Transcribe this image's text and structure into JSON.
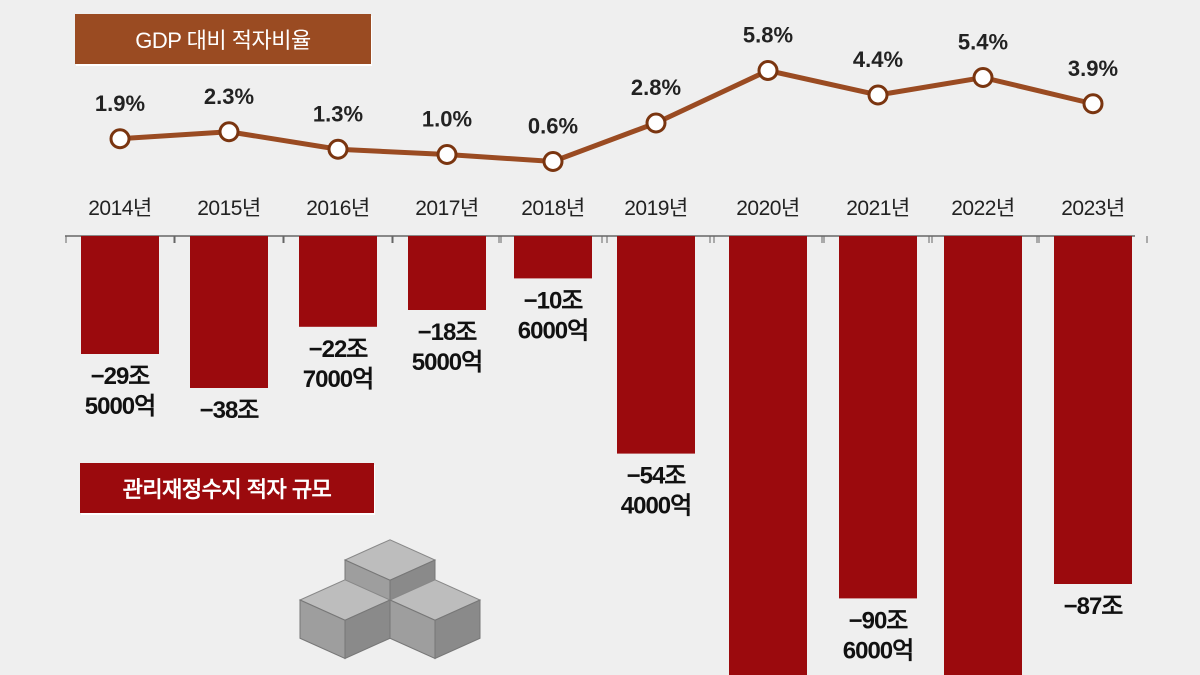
{
  "chart_data": [
    {
      "type": "line",
      "title": "GDP 대비 적자비율",
      "categories": [
        "2014년",
        "2015년",
        "2016년",
        "2017년",
        "2018년",
        "2019년",
        "2020년",
        "2021년",
        "2022년",
        "2023년"
      ],
      "values": [
        1.9,
        2.3,
        1.3,
        1.0,
        0.6,
        2.8,
        5.8,
        4.4,
        5.4,
        3.9
      ],
      "data_labels": [
        "1.9%",
        "2.3%",
        "1.3%",
        "1.0%",
        "0.6%",
        "2.8%",
        "5.8%",
        "4.4%",
        "5.4%",
        "3.9%"
      ],
      "unit": "%",
      "color": "#9a4b22"
    },
    {
      "type": "bar",
      "title": "관리재정수지 적자 규모",
      "categories": [
        "2014년",
        "2015년",
        "2016년",
        "2017년",
        "2018년",
        "2019년",
        "2020년",
        "2021년",
        "2022년",
        "2023년"
      ],
      "values": [
        -29.5,
        -38,
        -22.7,
        -18.5,
        -10.6,
        -54.4,
        null,
        -90.6,
        null,
        -87
      ],
      "data_labels": [
        [
          "−29조",
          "5000억"
        ],
        [
          "−38조"
        ],
        [
          "−22조",
          "7000억"
        ],
        [
          "−18조",
          "5000억"
        ],
        [
          "−10조",
          "6000억"
        ],
        [
          "−54조",
          "4000억"
        ],
        [],
        [
          "−90조",
          "6000억"
        ],
        [],
        [
          "−87조"
        ]
      ],
      "unit": "조 원",
      "color": "#9b0a0d",
      "note": "2020년, 2022년 bars extend beyond the visible area; labels not shown"
    }
  ]
}
